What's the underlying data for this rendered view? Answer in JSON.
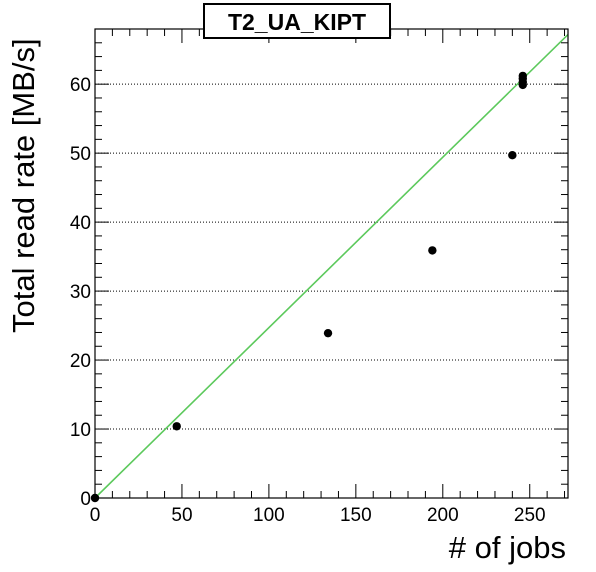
{
  "chart_data": {
    "type": "scatter",
    "title": "T2_UA_KIPT",
    "xlabel": "# of jobs",
    "ylabel": "Total read rate [MB/s]",
    "xlim": [
      0,
      272
    ],
    "ylim": [
      0,
      68
    ],
    "x_ticks": [
      "0",
      "50",
      "100",
      "150",
      "200",
      "250"
    ],
    "y_ticks": [
      "0",
      "10",
      "20",
      "30",
      "40",
      "50",
      "60"
    ],
    "grid": "horizontal dotted",
    "points": [
      {
        "x": 0,
        "y": 0
      },
      {
        "x": 47,
        "y": 10.4
      },
      {
        "x": 134,
        "y": 23.9
      },
      {
        "x": 194,
        "y": 35.9
      },
      {
        "x": 240,
        "y": 49.7
      },
      {
        "x": 246,
        "y": 59.9
      },
      {
        "x": 246,
        "y": 60.3
      },
      {
        "x": 246,
        "y": 60.8
      },
      {
        "x": 246,
        "y": 61.2
      }
    ],
    "fit_line": {
      "x": [
        0,
        272
      ],
      "y": [
        0,
        67.2
      ],
      "color": "#5cc95c"
    },
    "marker_color": "#000000"
  }
}
